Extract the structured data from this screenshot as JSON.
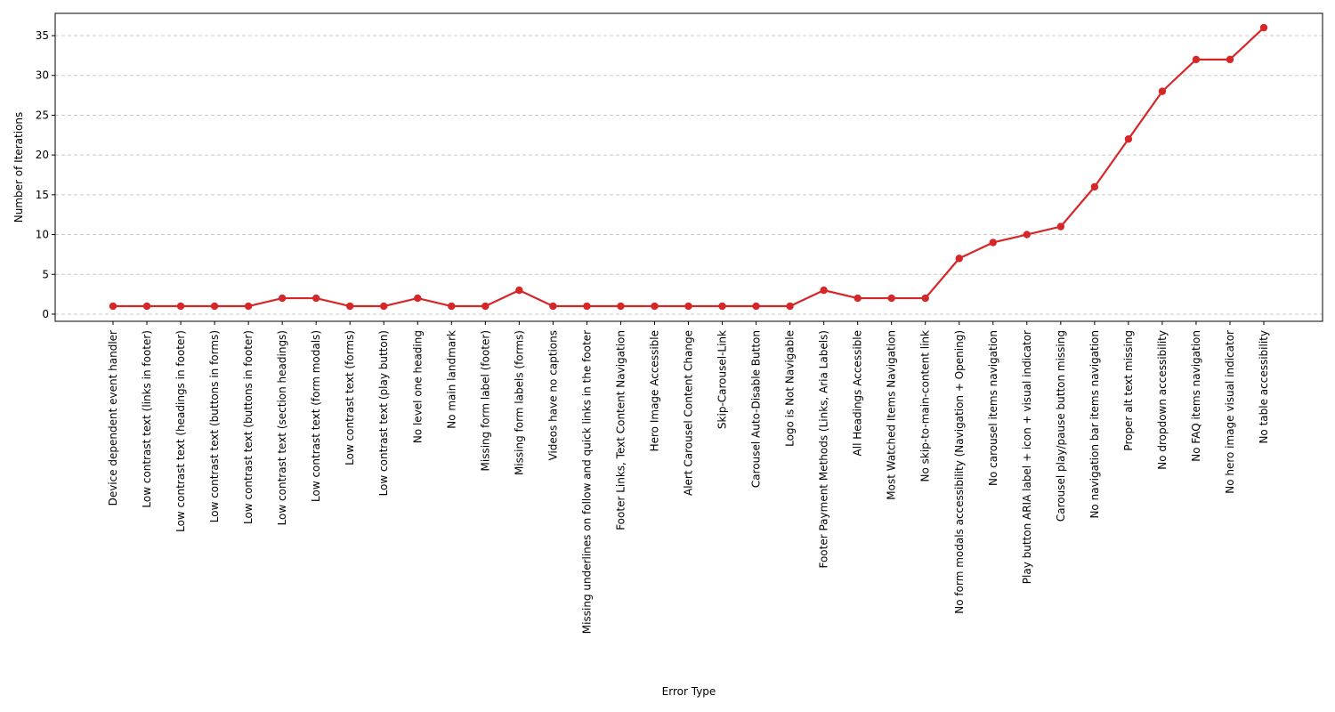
{
  "chart_data": {
    "type": "line",
    "xlabel": "Error Type",
    "ylabel": "Number of Iterations",
    "ylim": [
      -0.9,
      37.8
    ],
    "y_ticks": [
      0,
      5,
      10,
      15,
      20,
      25,
      30,
      35
    ],
    "grid": "horizontal dashed",
    "line_color": "#d62728",
    "marker": "circle",
    "categories": [
      "Device dependent event handler",
      "Low contrast text (links in footer)",
      "Low contrast text (headings in footer)",
      "Low contrast text (buttons in forms)",
      "Low contrast text (buttons in footer)",
      "Low contrast text (section headings)",
      "Low contrast text (form modals)",
      "Low contrast text (forms)",
      "Low contrast text (play button)",
      "No level one heading",
      "No main landmark",
      "Missing form label (footer)",
      "Missing form labels (forms)",
      "Videos have no captions",
      "Missing underlines on follow and quick links in the footer",
      "Footer Links, Text Content Navigation",
      "Hero Image Accessible",
      "Alert Carousel Content Change",
      "Skip-Carousel-Link",
      "Carousel Auto-Disable Button",
      "Logo is Not Navigable",
      "Footer Payment Methods (Links, Aria Labels)",
      "All Headings Accessible",
      "Most Watched Items Navigation",
      "No skip-to-main-content link",
      "No form modals accessibility (Navigation + Opening)",
      "No carousel items navigation",
      "Play button ARIA label + icon + visual indicator",
      "Carousel play/pause button missing",
      "No navigation bar items navigation",
      "Proper alt text missing",
      "No dropdown accessibility",
      "No FAQ items navigation",
      "No hero image visual indicator",
      "No table accessibility"
    ],
    "values": [
      1,
      1,
      1,
      1,
      1,
      2,
      2,
      1,
      1,
      2,
      1,
      1,
      3,
      1,
      1,
      1,
      1,
      1,
      1,
      1,
      1,
      3,
      2,
      2,
      2,
      7,
      9,
      10,
      11,
      16,
      22,
      28,
      32,
      32,
      36
    ]
  }
}
